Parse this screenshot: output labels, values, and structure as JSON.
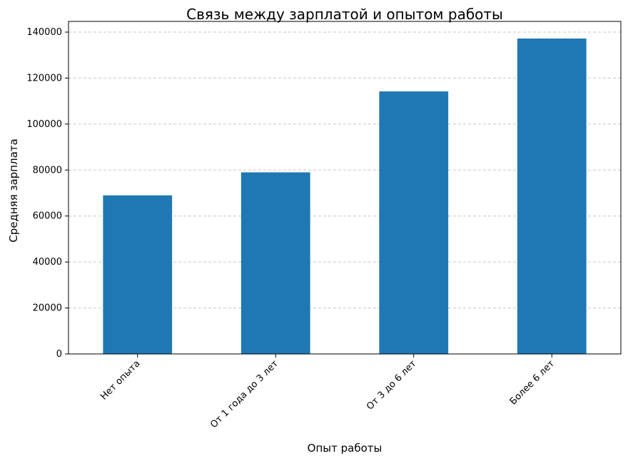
{
  "chart_data": {
    "type": "bar",
    "title": "Связь между зарплатой и опытом работы",
    "xlabel": "Опыт работы",
    "ylabel": "Средняя зарплата",
    "categories": [
      "Нет опыта",
      "От 1 года до 3 лет",
      "От 3 до 6 лет",
      "Более 6 лет"
    ],
    "values": [
      69000,
      79000,
      114200,
      137200
    ],
    "ylim": [
      0,
      140000
    ],
    "yticks": [
      0,
      20000,
      40000,
      60000,
      80000,
      100000,
      120000,
      140000
    ],
    "grid": "horizontal dashed",
    "legend": "none",
    "bar_color": "#1f77b4",
    "grid_color": "#c8c8c8"
  }
}
